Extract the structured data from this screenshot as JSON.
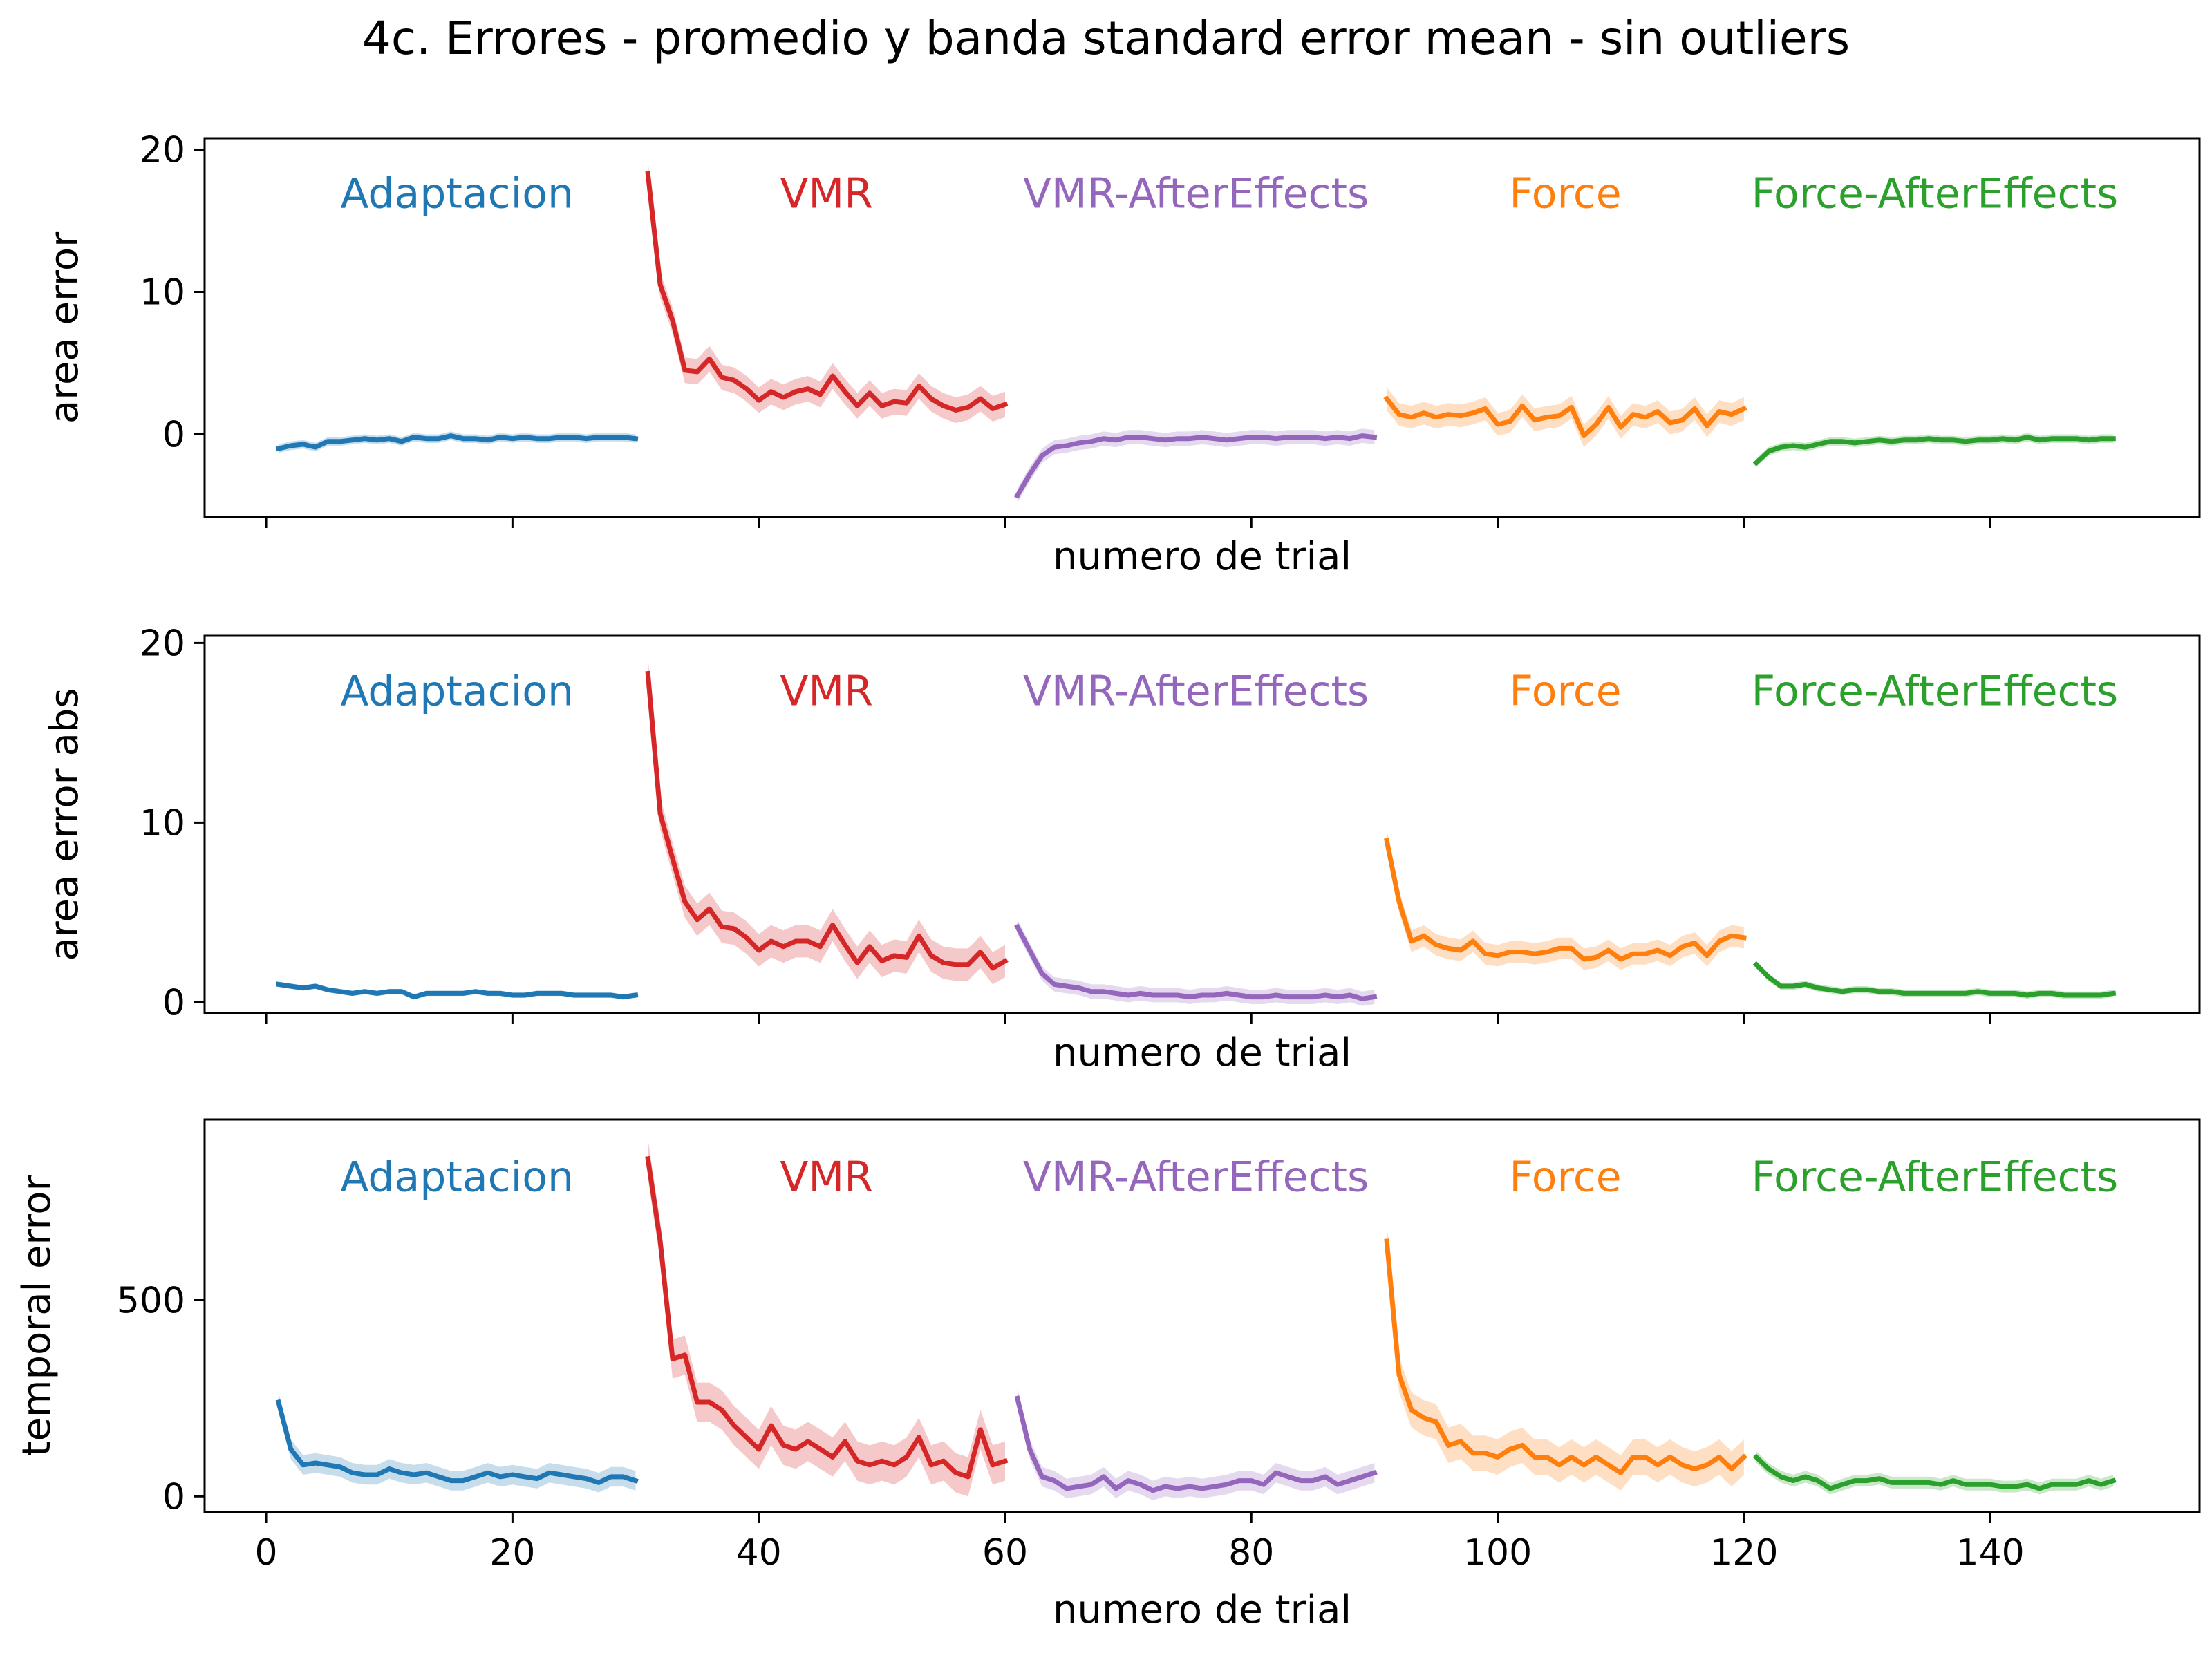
{
  "title": "4c. Errores - promedio y banda standard error mean - sin outliers",
  "colors": {
    "Adaptacion": "#1f77b4",
    "VMR": "#d62728",
    "VMR-AfterEffects": "#9467bd",
    "Force": "#ff7f0e",
    "Force-AfterEffects": "#2ca02c"
  },
  "segments": [
    {
      "label": "Adaptacion",
      "start": 1,
      "end": 30
    },
    {
      "label": "VMR",
      "start": 31,
      "end": 60
    },
    {
      "label": "VMR-AfterEffects",
      "start": 61,
      "end": 90
    },
    {
      "label": "Force",
      "start": 91,
      "end": 120
    },
    {
      "label": "Force-AfterEffects",
      "start": 121,
      "end": 150
    }
  ],
  "chart_data": [
    {
      "type": "line",
      "xlabel": "numero de trial",
      "ylabel": "area error",
      "xlim": [
        -5,
        157
      ],
      "ylim": [
        -5.8,
        20.8
      ],
      "xticks": [
        0,
        20,
        40,
        60,
        80,
        100,
        120,
        140
      ],
      "show_xticklabels": false,
      "yticks": [
        0,
        10,
        20
      ],
      "series": [
        {
          "group": "Adaptacion",
          "x_start": 1,
          "band": 0.3,
          "values": [
            -1.0,
            -0.8,
            -0.7,
            -0.9,
            -0.5,
            -0.5,
            -0.4,
            -0.3,
            -0.4,
            -0.3,
            -0.5,
            -0.2,
            -0.3,
            -0.3,
            -0.1,
            -0.3,
            -0.3,
            -0.4,
            -0.2,
            -0.3,
            -0.2,
            -0.3,
            -0.3,
            -0.2,
            -0.2,
            -0.3,
            -0.2,
            -0.2,
            -0.2,
            -0.3
          ]
        },
        {
          "group": "VMR",
          "x_start": 31,
          "band": 0.9,
          "values": [
            18.3,
            10.5,
            8.0,
            4.5,
            4.4,
            5.3,
            4.0,
            3.8,
            3.2,
            2.4,
            3.0,
            2.6,
            3.0,
            3.2,
            2.8,
            4.1,
            3.0,
            2.0,
            2.9,
            2.0,
            2.3,
            2.2,
            3.4,
            2.5,
            2.0,
            1.7,
            1.9,
            2.5,
            1.8,
            2.1
          ]
        },
        {
          "group": "VMR-AfterEffects",
          "x_start": 61,
          "band": 0.5,
          "values": [
            -4.3,
            -2.8,
            -1.5,
            -0.9,
            -0.8,
            -0.6,
            -0.5,
            -0.3,
            -0.4,
            -0.2,
            -0.2,
            -0.3,
            -0.4,
            -0.3,
            -0.3,
            -0.2,
            -0.3,
            -0.4,
            -0.3,
            -0.2,
            -0.2,
            -0.3,
            -0.2,
            -0.2,
            -0.2,
            -0.3,
            -0.2,
            -0.3,
            -0.1,
            -0.2
          ]
        },
        {
          "group": "Force",
          "x_start": 91,
          "band": 0.8,
          "values": [
            2.5,
            1.4,
            1.2,
            1.5,
            1.2,
            1.4,
            1.3,
            1.5,
            1.8,
            0.7,
            0.9,
            2.0,
            1.0,
            1.2,
            1.3,
            1.9,
            -0.1,
            0.7,
            1.9,
            0.5,
            1.4,
            1.2,
            1.6,
            0.8,
            1.0,
            1.8,
            0.6,
            1.6,
            1.4,
            1.8
          ]
        },
        {
          "group": "Force-AfterEffects",
          "x_start": 121,
          "band": 0.3,
          "values": [
            -2.0,
            -1.2,
            -0.9,
            -0.8,
            -0.9,
            -0.7,
            -0.5,
            -0.5,
            -0.6,
            -0.5,
            -0.4,
            -0.5,
            -0.4,
            -0.4,
            -0.3,
            -0.4,
            -0.4,
            -0.5,
            -0.4,
            -0.4,
            -0.3,
            -0.4,
            -0.2,
            -0.4,
            -0.3,
            -0.3,
            -0.3,
            -0.4,
            -0.3,
            -0.3
          ]
        }
      ]
    },
    {
      "type": "line",
      "xlabel": "numero de trial",
      "ylabel": "area error abs",
      "xlim": [
        -5,
        157
      ],
      "ylim": [
        -0.6,
        20.4
      ],
      "xticks": [
        0,
        20,
        40,
        60,
        80,
        100,
        120,
        140
      ],
      "show_xticklabels": false,
      "yticks": [
        0,
        10,
        20
      ],
      "series": [
        {
          "group": "Adaptacion",
          "x_start": 1,
          "band": 0.15,
          "values": [
            1.0,
            0.9,
            0.8,
            0.9,
            0.7,
            0.6,
            0.5,
            0.6,
            0.5,
            0.6,
            0.6,
            0.3,
            0.5,
            0.5,
            0.5,
            0.5,
            0.6,
            0.5,
            0.5,
            0.4,
            0.4,
            0.5,
            0.5,
            0.5,
            0.4,
            0.4,
            0.4,
            0.4,
            0.3,
            0.4
          ]
        },
        {
          "group": "VMR",
          "x_start": 31,
          "band": 0.9,
          "values": [
            18.3,
            10.5,
            8.0,
            5.6,
            4.6,
            5.2,
            4.2,
            4.1,
            3.6,
            2.9,
            3.4,
            3.1,
            3.4,
            3.4,
            3.1,
            4.3,
            3.2,
            2.2,
            3.1,
            2.3,
            2.6,
            2.5,
            3.7,
            2.6,
            2.2,
            2.1,
            2.1,
            2.8,
            1.9,
            2.3
          ]
        },
        {
          "group": "VMR-AfterEffects",
          "x_start": 61,
          "band": 0.4,
          "values": [
            4.2,
            2.9,
            1.6,
            1.0,
            0.9,
            0.8,
            0.6,
            0.6,
            0.5,
            0.4,
            0.5,
            0.4,
            0.4,
            0.4,
            0.3,
            0.4,
            0.4,
            0.5,
            0.4,
            0.3,
            0.3,
            0.4,
            0.3,
            0.3,
            0.3,
            0.4,
            0.3,
            0.4,
            0.2,
            0.3
          ]
        },
        {
          "group": "Force",
          "x_start": 91,
          "band": 0.6,
          "values": [
            9.0,
            5.6,
            3.4,
            3.7,
            3.2,
            3.0,
            2.9,
            3.4,
            2.7,
            2.6,
            2.8,
            2.8,
            2.7,
            2.8,
            3.0,
            3.0,
            2.4,
            2.5,
            2.9,
            2.4,
            2.7,
            2.7,
            2.9,
            2.6,
            3.1,
            3.3,
            2.6,
            3.4,
            3.7,
            3.6
          ]
        },
        {
          "group": "Force-AfterEffects",
          "x_start": 121,
          "band": 0.2,
          "values": [
            2.1,
            1.4,
            0.9,
            0.9,
            1.0,
            0.8,
            0.7,
            0.6,
            0.7,
            0.7,
            0.6,
            0.6,
            0.5,
            0.5,
            0.5,
            0.5,
            0.5,
            0.5,
            0.6,
            0.5,
            0.5,
            0.5,
            0.4,
            0.5,
            0.5,
            0.4,
            0.4,
            0.4,
            0.4,
            0.5
          ]
        }
      ]
    },
    {
      "type": "line",
      "xlabel": "numero de trial",
      "ylabel": "temporal error",
      "xlim": [
        -5,
        157
      ],
      "ylim": [
        -40,
        960
      ],
      "xticks": [
        0,
        20,
        40,
        60,
        80,
        100,
        120,
        140
      ],
      "show_xticklabels": true,
      "yticks": [
        0,
        500
      ],
      "series": [
        {
          "group": "Adaptacion",
          "x_start": 1,
          "band": 25,
          "values": [
            240,
            120,
            80,
            85,
            80,
            75,
            60,
            55,
            55,
            70,
            60,
            55,
            60,
            50,
            40,
            40,
            50,
            60,
            50,
            55,
            50,
            45,
            60,
            55,
            50,
            45,
            35,
            50,
            50,
            40
          ]
        },
        {
          "group": "VMR",
          "x_start": 31,
          "band": 50,
          "values": [
            860,
            650,
            350,
            360,
            240,
            240,
            220,
            180,
            150,
            120,
            180,
            130,
            120,
            140,
            120,
            100,
            140,
            90,
            80,
            90,
            80,
            100,
            150,
            80,
            90,
            60,
            50,
            170,
            80,
            90
          ]
        },
        {
          "group": "VMR-AfterEffects",
          "x_start": 61,
          "band": 25,
          "values": [
            250,
            120,
            50,
            40,
            20,
            25,
            30,
            50,
            20,
            40,
            30,
            15,
            25,
            20,
            25,
            20,
            25,
            30,
            40,
            40,
            30,
            60,
            50,
            40,
            40,
            50,
            30,
            40,
            50,
            60
          ]
        },
        {
          "group": "Force",
          "x_start": 91,
          "band": 45,
          "values": [
            650,
            310,
            220,
            200,
            190,
            130,
            140,
            110,
            110,
            100,
            120,
            130,
            100,
            100,
            80,
            100,
            80,
            100,
            80,
            60,
            100,
            100,
            80,
            100,
            80,
            70,
            80,
            100,
            70,
            100
          ]
        },
        {
          "group": "Force-AfterEffects",
          "x_start": 121,
          "band": 15,
          "values": [
            100,
            70,
            50,
            40,
            50,
            40,
            20,
            30,
            40,
            40,
            45,
            35,
            35,
            35,
            35,
            30,
            40,
            30,
            30,
            30,
            25,
            25,
            30,
            20,
            30,
            30,
            30,
            40,
            30,
            40
          ]
        }
      ]
    }
  ]
}
